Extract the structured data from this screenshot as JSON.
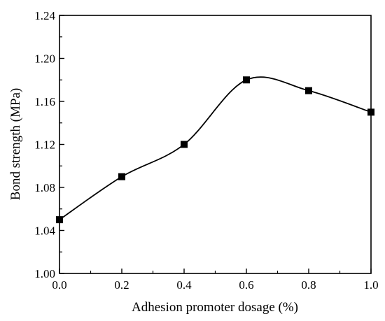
{
  "chart_data": {
    "type": "line",
    "title": "",
    "xlabel": "Adhesion promoter dosage (%)",
    "ylabel": "Bond strength (MPa)",
    "xlim": [
      0.0,
      1.0
    ],
    "ylim": [
      1.0,
      1.24
    ],
    "x_ticks": [
      0.0,
      0.2,
      0.4,
      0.6,
      0.8,
      1.0
    ],
    "x_tick_labels": [
      "0.0",
      "0.2",
      "0.4",
      "0.6",
      "0.8",
      "1.0"
    ],
    "y_ticks": [
      1.0,
      1.04,
      1.08,
      1.12,
      1.16,
      1.2,
      1.24
    ],
    "y_tick_labels": [
      "1.00",
      "1.04",
      "1.08",
      "1.12",
      "1.16",
      "1.20",
      "1.24"
    ],
    "grid": false,
    "legend": "none",
    "line_style": "smooth spline",
    "marker": "filled square",
    "color": "#000000",
    "series": [
      {
        "x": [
          0.0,
          0.2,
          0.4,
          0.6,
          0.8,
          1.0
        ],
        "values": [
          1.05,
          1.09,
          1.12,
          1.18,
          1.17,
          1.15
        ]
      }
    ]
  }
}
